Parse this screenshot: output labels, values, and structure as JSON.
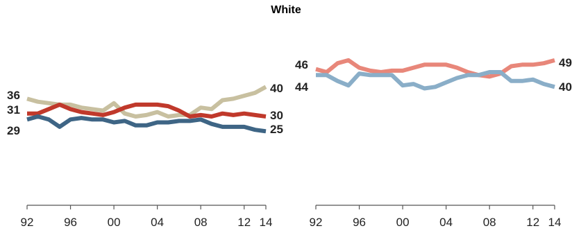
{
  "title": "White",
  "chart_data": [
    {
      "type": "line",
      "x": [
        1992,
        1993,
        1994,
        1995,
        1996,
        1997,
        1998,
        1999,
        2000,
        2001,
        2002,
        2003,
        2004,
        2005,
        2006,
        2007,
        2008,
        2009,
        2010,
        2011,
        2012,
        2013,
        2014
      ],
      "xticks": [
        "92",
        "96",
        "00",
        "04",
        "08",
        "12",
        "14"
      ],
      "xtick_years": [
        1992,
        1996,
        2000,
        2004,
        2008,
        2012,
        2014
      ],
      "ylim": [
        0,
        60
      ],
      "grid": false,
      "series": [
        {
          "color": "#c8c0a0",
          "values": [
            36,
            35,
            34.5,
            34,
            34,
            33,
            32.5,
            32,
            34.5,
            31,
            30,
            30.5,
            31.5,
            30,
            30.5,
            30.5,
            33,
            32.5,
            35.5,
            36,
            37,
            38,
            40
          ],
          "label_start": "36",
          "label_end": "40"
        },
        {
          "color": "#c0392b",
          "values": [
            31,
            31,
            32.5,
            34,
            32.5,
            31.5,
            31,
            30.5,
            31.5,
            33,
            34,
            34,
            34,
            33.5,
            32,
            30,
            30.5,
            30,
            31,
            30.5,
            31,
            30.5,
            30
          ],
          "label_start": "31",
          "label_end": "30"
        },
        {
          "color": "#3e6585",
          "values": [
            29,
            30,
            29,
            26.5,
            29,
            29.5,
            29,
            29,
            28,
            28.5,
            27,
            27,
            28,
            28,
            28.5,
            28.5,
            29,
            27.5,
            26.5,
            26.5,
            26.5,
            25.5,
            25
          ],
          "label_start": "29",
          "label_end": "25"
        }
      ]
    },
    {
      "type": "line",
      "x": [
        1992,
        1993,
        1994,
        1995,
        1996,
        1997,
        1998,
        1999,
        2000,
        2001,
        2002,
        2003,
        2004,
        2005,
        2006,
        2007,
        2008,
        2009,
        2010,
        2011,
        2012,
        2013,
        2014
      ],
      "xticks": [
        "92",
        "96",
        "00",
        "04",
        "08",
        "12",
        "14"
      ],
      "xtick_years": [
        1992,
        1996,
        2000,
        2004,
        2008,
        2012,
        2014
      ],
      "ylim": [
        0,
        60
      ],
      "grid": false,
      "series": [
        {
          "color": "#e8877a",
          "values": [
            46,
            45,
            48,
            49,
            46.5,
            45.5,
            45,
            45.5,
            45.5,
            46.5,
            47.5,
            47.5,
            47.5,
            46.5,
            45,
            44,
            43.5,
            44.5,
            47,
            47.5,
            47.5,
            48,
            49
          ],
          "label_start": "46",
          "label_end": "49"
        },
        {
          "color": "#8aaec8",
          "values": [
            44,
            44,
            42,
            40.5,
            44.5,
            44,
            44,
            44,
            40.5,
            41,
            39.5,
            40,
            41.5,
            43,
            44,
            44,
            45,
            45,
            42,
            42,
            42.5,
            41,
            40
          ],
          "label_start": "44",
          "label_end": "40"
        }
      ]
    }
  ]
}
